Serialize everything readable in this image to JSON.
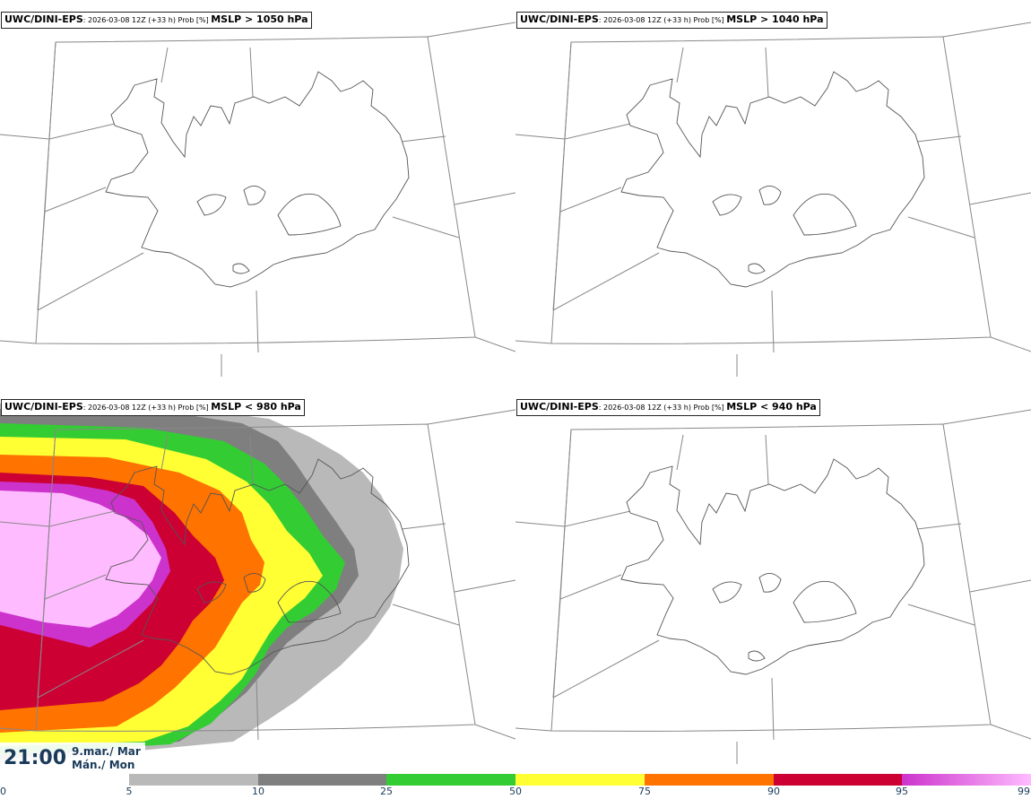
{
  "panels": [
    {
      "model": "UWC/DINI-EPS",
      "meta": ": 2026-03-08 12Z (+33 h) Prob [%] ",
      "product": "MSLP > 1050 hPa"
    },
    {
      "model": "UWC/DINI-EPS",
      "meta": ": 2026-03-08 12Z (+33 h) Prob [%] ",
      "product": "MSLP > 1040 hPa"
    },
    {
      "model": "UWC/DINI-EPS",
      "meta": ": 2026-03-08 12Z (+33 h) Prob [%] ",
      "product": "MSLP < 980 hPa"
    },
    {
      "model": "UWC/DINI-EPS",
      "meta": ": 2026-03-08 12Z (+33 h) Prob [%] ",
      "product": "MSLP < 940 hPa"
    }
  ],
  "time": {
    "clock": "21:00",
    "date_line1": "9.mar./ Mar",
    "date_line2": "Mán./ Mon"
  },
  "legend": {
    "ticks": [
      "0",
      "5",
      "10",
      "25",
      "50",
      "75",
      "90",
      "95",
      "99"
    ],
    "colors": [
      "#ffffff",
      "#b9b9b9",
      "#7f7f7f",
      "#33cc33",
      "#ffff33",
      "#ff7300",
      "#cc0033",
      "#cc33cc",
      "#ffbbff"
    ]
  },
  "field_colors": {
    "gray_light": "#b9b9b9",
    "gray_dark": "#7f7f7f",
    "green": "#33cc33",
    "yellow": "#ffff33",
    "orange": "#ff7300",
    "red": "#cc0033",
    "magenta": "#cc33cc",
    "pink": "#ffbbff"
  }
}
